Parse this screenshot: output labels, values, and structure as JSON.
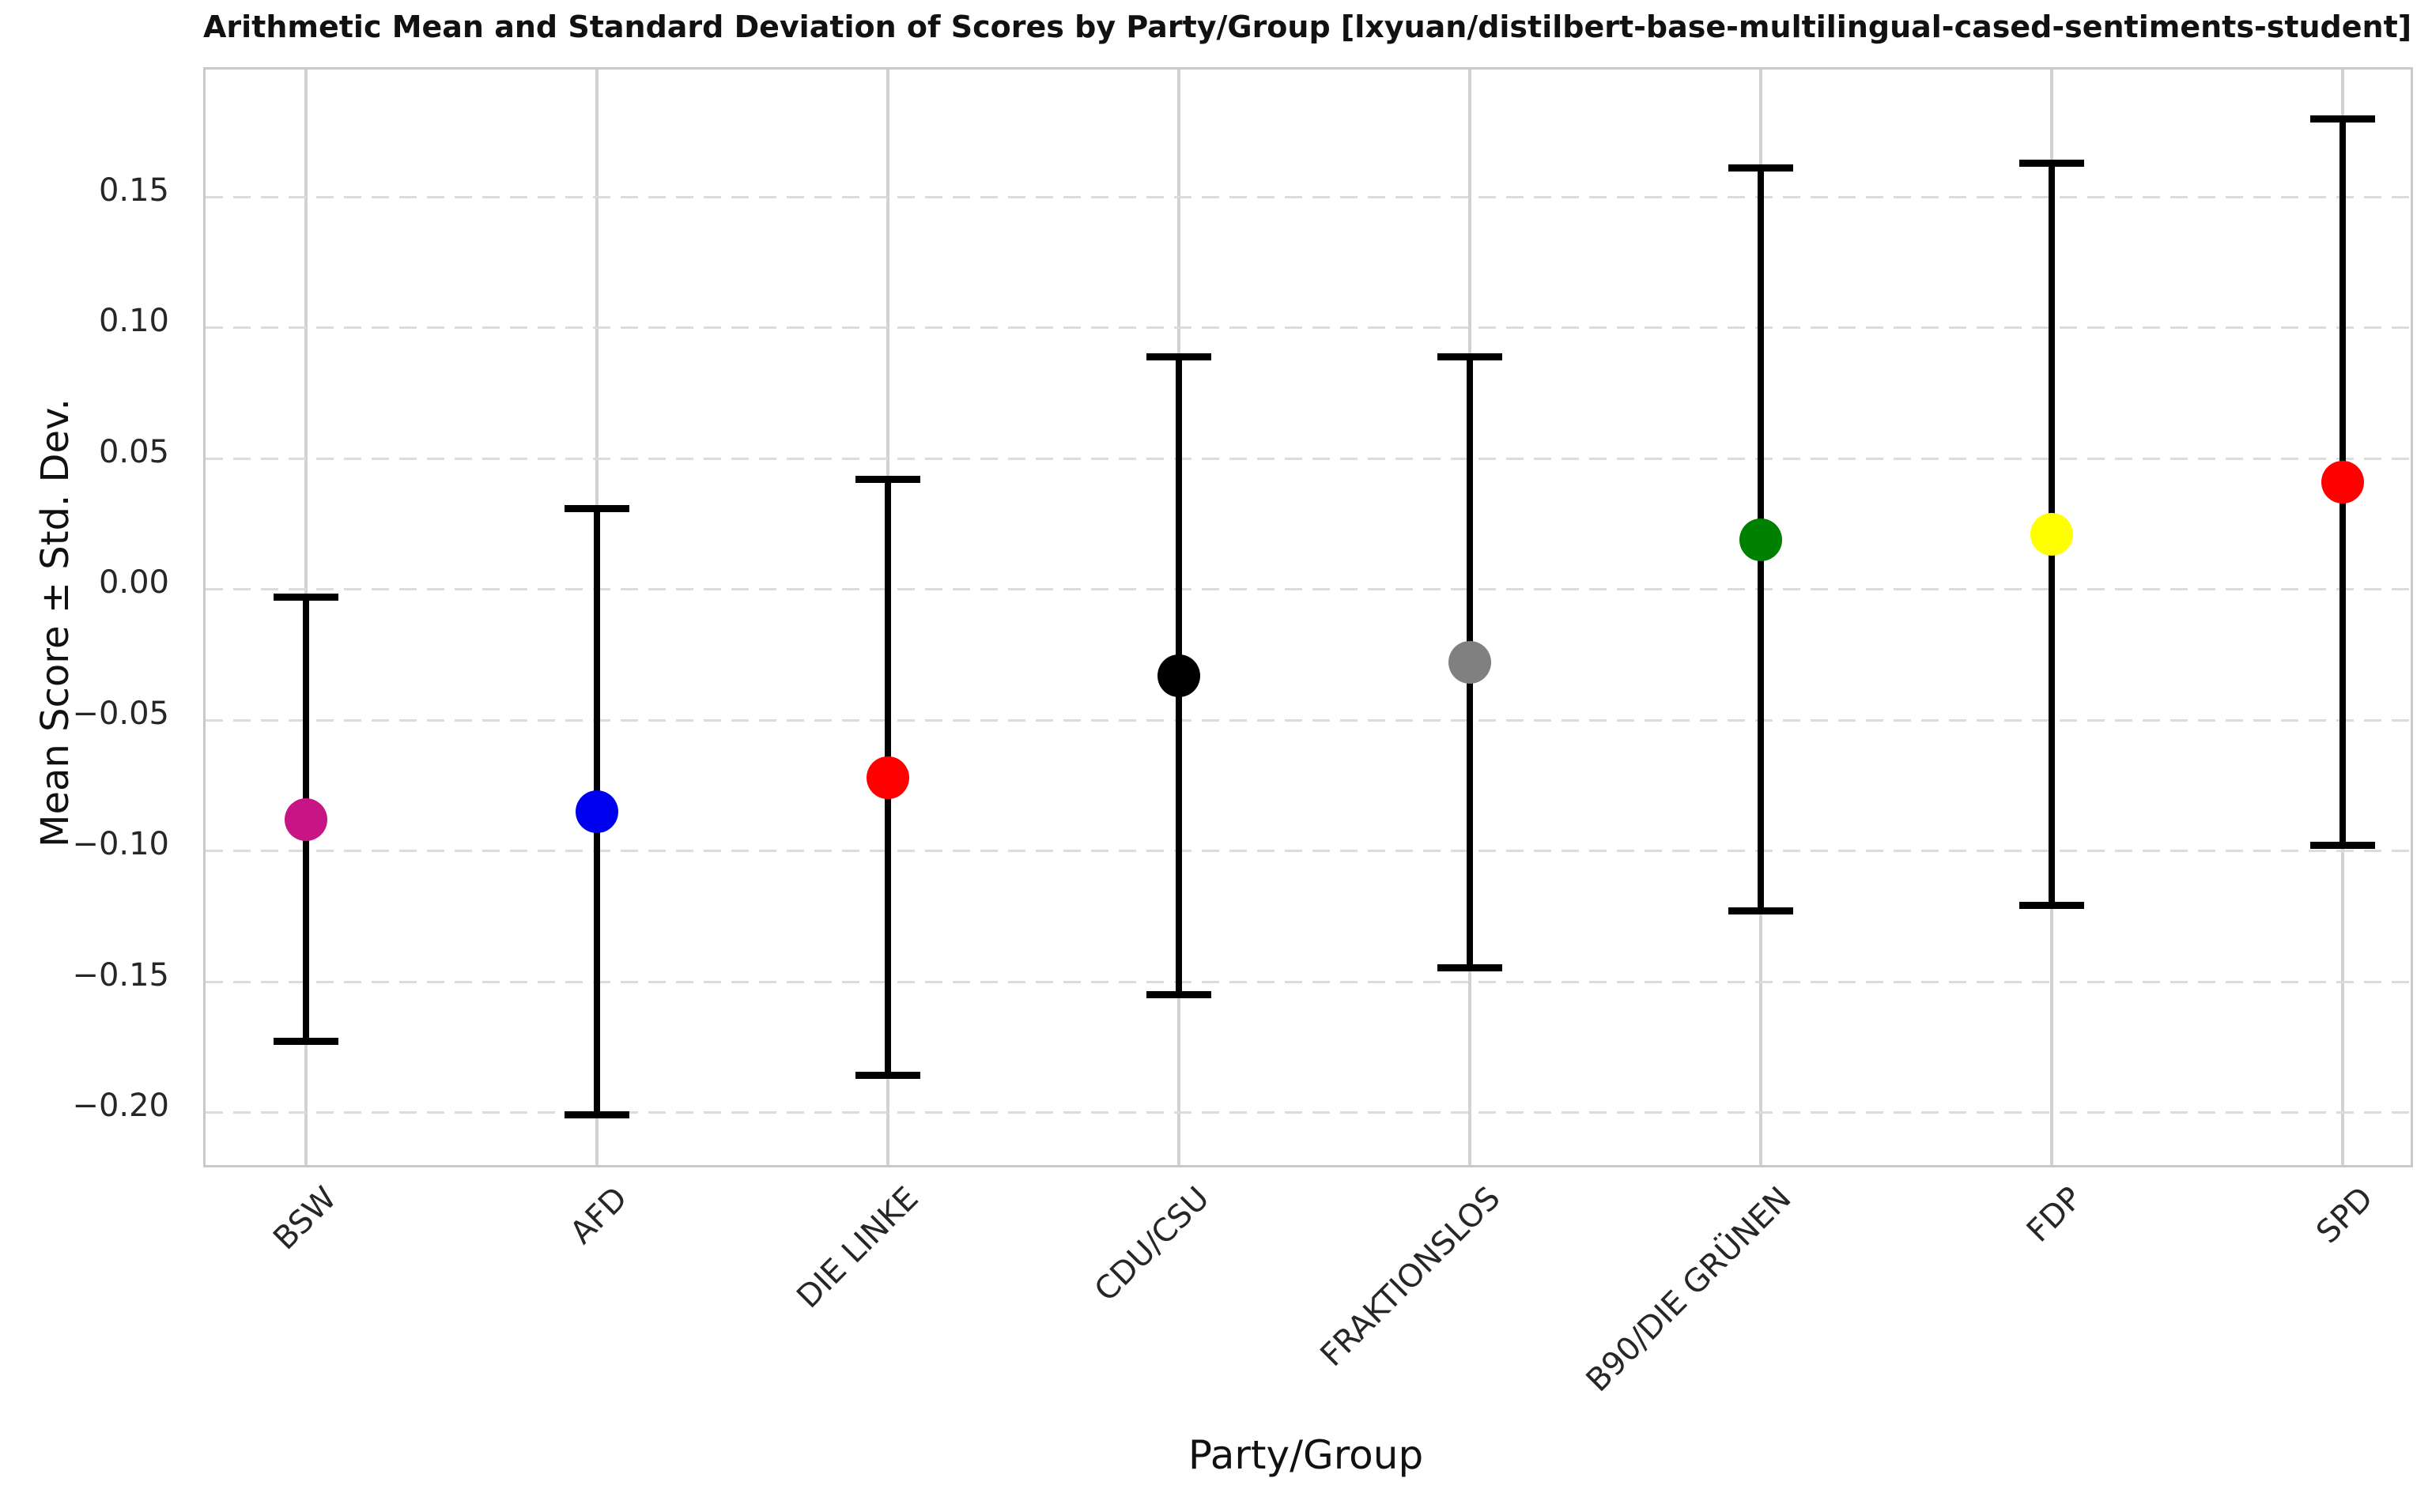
{
  "figure": {
    "title": "Arithmetic Mean and Standard Deviation of Scores by Party/Group [lxyuan/distilbert-base-multilingual-cased-sentiments-student]",
    "xlabel": "Party/Group",
    "ylabel": "Mean Score ± Std. Dev.",
    "background_color": "#ffffff",
    "errorbar_color": "#000000",
    "grid_horizontal_style": "dashed",
    "grid_vertical_style": "solid",
    "grid_color": "#d8d8d8"
  },
  "chart_data": {
    "type": "scatter",
    "subtype": "errorbar",
    "title": "Arithmetic Mean and Standard Deviation of Scores by Party/Group [lxyuan/distilbert-base-multilingual-cased-sentiments-student]",
    "xlabel": "Party/Group",
    "ylabel": "Mean Score ± Std. Dev.",
    "categories": [
      "BSW",
      "AFD",
      "DIE LINKE",
      "CDU/CSU",
      "FRAKTIONSLOS",
      "B90/DIE GRÜNEN",
      "FDP",
      "SPD"
    ],
    "series": [
      {
        "name": "mean",
        "values": [
          -0.088,
          -0.085,
          -0.072,
          -0.033,
          -0.028,
          0.019,
          0.021,
          0.041
        ]
      },
      {
        "name": "std",
        "values": [
          0.085,
          0.116,
          0.114,
          0.122,
          0.117,
          0.142,
          0.142,
          0.139
        ]
      }
    ],
    "points": [
      {
        "label": "BSW",
        "mean": -0.088,
        "std": 0.085,
        "upper": -0.003,
        "lower": -0.173,
        "color": "#C71585"
      },
      {
        "label": "AFD",
        "mean": -0.085,
        "std": 0.116,
        "upper": 0.031,
        "lower": -0.201,
        "color": "#0000F0"
      },
      {
        "label": "DIE LINKE",
        "mean": -0.072,
        "std": 0.114,
        "upper": 0.042,
        "lower": -0.186,
        "color": "#FF0000"
      },
      {
        "label": "CDU/CSU",
        "mean": -0.033,
        "std": 0.122,
        "upper": 0.089,
        "lower": -0.155,
        "color": "#000000"
      },
      {
        "label": "FRAKTIONSLOS",
        "mean": -0.028,
        "std": 0.117,
        "upper": 0.089,
        "lower": -0.145,
        "color": "#808080"
      },
      {
        "label": "B90/DIE GRÜNEN",
        "mean": 0.019,
        "std": 0.142,
        "upper": 0.161,
        "lower": -0.123,
        "color": "#008000"
      },
      {
        "label": "FDP",
        "mean": 0.021,
        "std": 0.142,
        "upper": 0.163,
        "lower": -0.121,
        "color": "#FFFF00"
      },
      {
        "label": "SPD",
        "mean": 0.041,
        "std": 0.139,
        "upper": 0.18,
        "lower": -0.098,
        "color": "#FF0000"
      }
    ],
    "yticks": [
      {
        "value": 0.15,
        "label": "0.15"
      },
      {
        "value": 0.1,
        "label": "0.10"
      },
      {
        "value": 0.05,
        "label": "0.05"
      },
      {
        "value": 0.0,
        "label": "0.00"
      },
      {
        "value": -0.05,
        "label": "−0.05"
      },
      {
        "value": -0.1,
        "label": "−0.10"
      },
      {
        "value": -0.15,
        "label": "−0.15"
      },
      {
        "value": -0.2,
        "label": "−0.20"
      }
    ],
    "ylim": [
      -0.2201,
      0.1986
    ],
    "grid": {
      "horizontal": "dashed",
      "vertical": "solid",
      "on": true
    },
    "legend": "none"
  }
}
